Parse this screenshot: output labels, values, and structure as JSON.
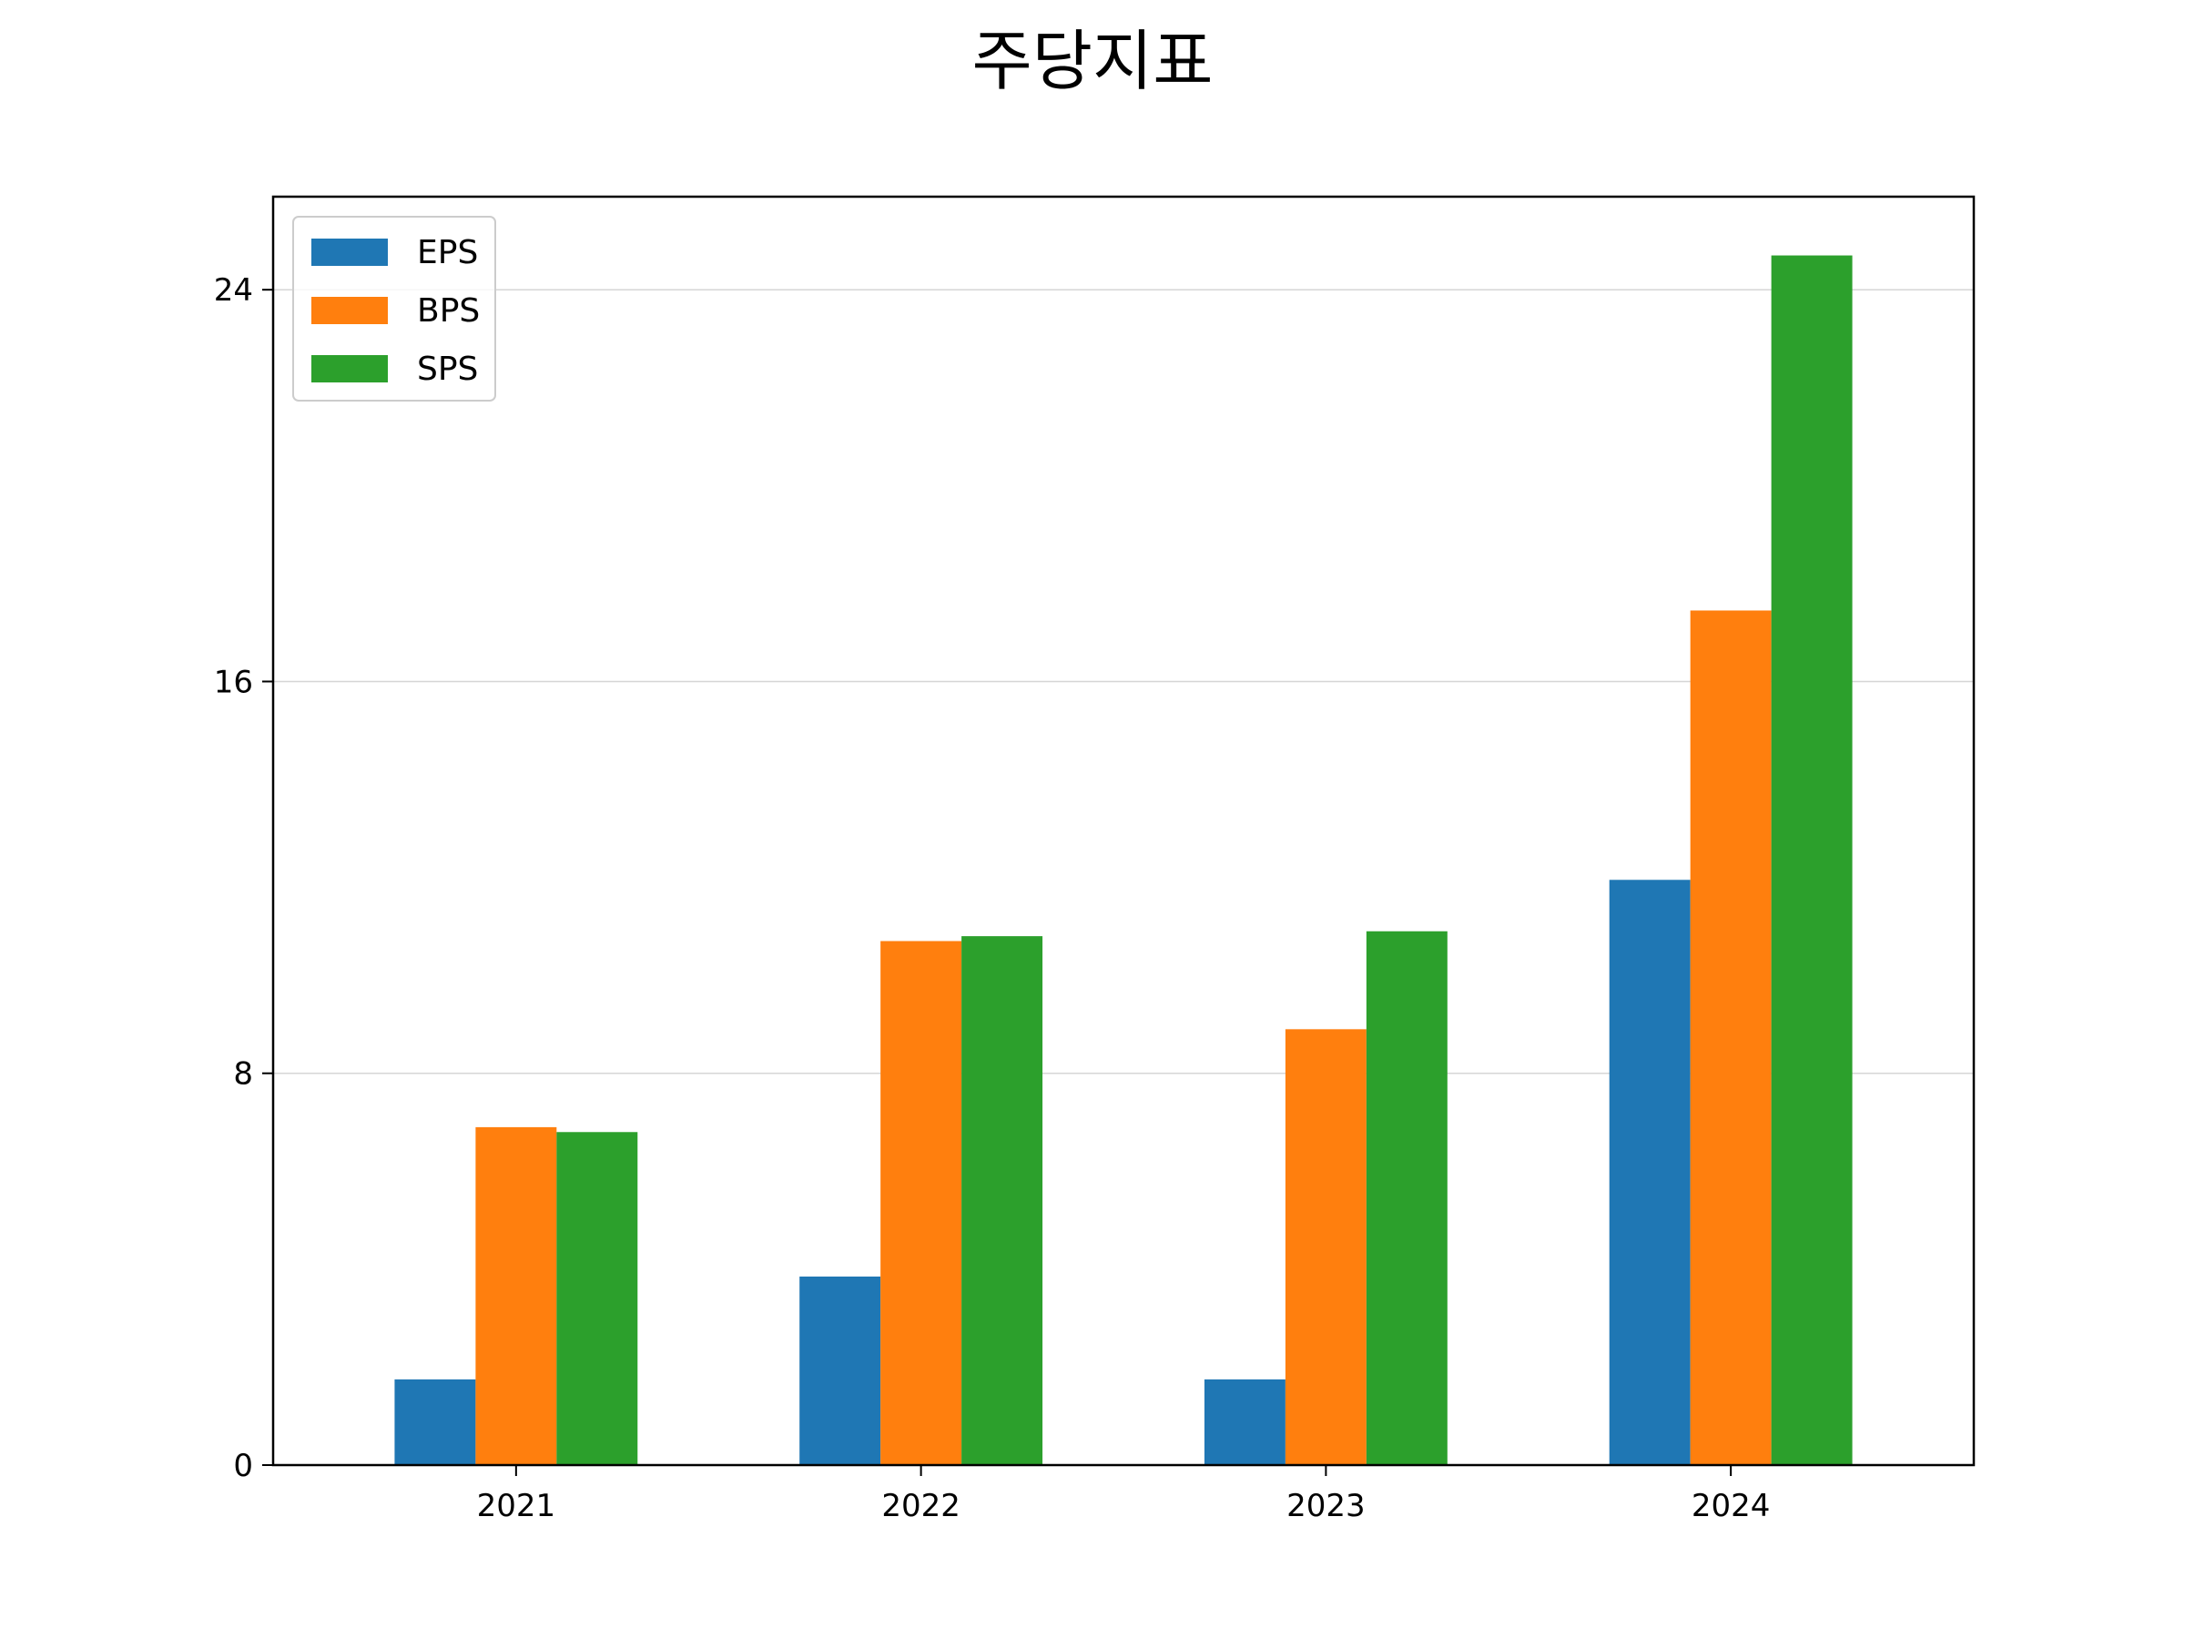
{
  "chart_data": {
    "type": "bar",
    "title": "주당지표",
    "xlabel": "",
    "ylabel": "",
    "categories": [
      "2021",
      "2022",
      "2023",
      "2024"
    ],
    "series": [
      {
        "name": "EPS",
        "values": [
          1.75,
          3.85,
          1.75,
          11.95
        ],
        "color": "#1f77b4"
      },
      {
        "name": "BPS",
        "values": [
          6.9,
          10.7,
          8.9,
          17.45
        ],
        "color": "#ff7f0e"
      },
      {
        "name": "SPS",
        "values": [
          6.8,
          10.8,
          10.9,
          24.7
        ],
        "color": "#2ca02c"
      }
    ],
    "ylim": [
      0,
      25.9
    ],
    "yticks": [
      "0",
      "8",
      "16",
      "24"
    ],
    "grid": "y-axis",
    "legend": "top-left"
  }
}
